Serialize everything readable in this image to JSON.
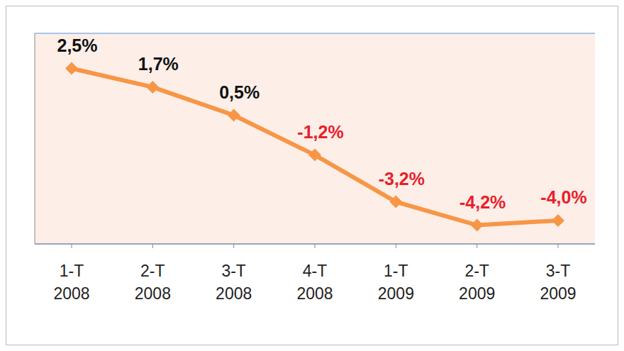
{
  "chart_data": {
    "type": "line",
    "categories": [
      "1-T 2008",
      "2-T 2008",
      "3-T 2008",
      "4-T 2008",
      "1-T 2009",
      "2-T 2009",
      "3-T 2009"
    ],
    "values": [
      2.5,
      1.7,
      0.5,
      -1.2,
      -3.2,
      -4.2,
      -4.0
    ],
    "value_labels": [
      "2,5%",
      "1,7%",
      "0,5%",
      "-1,2%",
      "-3,2%",
      "-4,2%",
      "-4,0%"
    ],
    "color": "#f79646",
    "marker": "diamond",
    "ylim": [
      -5,
      4
    ],
    "yticks": [
      -5,
      -4,
      -3,
      -2,
      -1,
      0,
      1,
      2,
      3,
      4
    ],
    "grid": true,
    "data_labels": true,
    "tick_labels": "x"
  }
}
